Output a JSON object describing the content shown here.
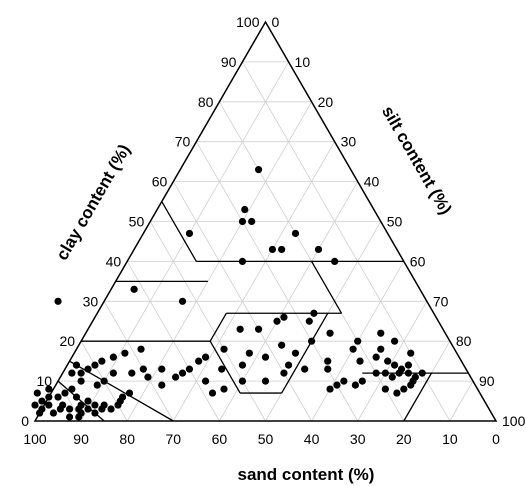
{
  "chart_data": {
    "type": "scatter",
    "subtype": "ternary",
    "grid": true,
    "grid_step": 10,
    "axes": {
      "sand": {
        "label": "sand content (%)",
        "ticks": [
          100,
          90,
          80,
          70,
          60,
          50,
          40,
          30,
          20,
          10,
          0
        ]
      },
      "clay": {
        "label": "clay content (%)",
        "ticks": [
          0,
          10,
          20,
          30,
          40,
          50,
          60,
          70,
          80,
          90,
          100
        ]
      },
      "silt": {
        "label": "silt content (%)",
        "ticks": [
          0,
          10,
          20,
          30,
          40,
          50,
          60,
          70,
          80,
          90,
          100
        ]
      }
    },
    "class_boundaries": [
      [
        [
          45,
          55
        ],
        [
          45,
          40
        ]
      ],
      [
        [
          65,
          35
        ],
        [
          45,
          35
        ]
      ],
      [
        [
          45,
          40
        ],
        [
          20,
          40
        ]
      ],
      [
        [
          20,
          40
        ],
        [
          0,
          40
        ]
      ],
      [
        [
          20,
          40
        ],
        [
          20,
          27
        ]
      ],
      [
        [
          80,
          20
        ],
        [
          52,
          20
        ]
      ],
      [
        [
          52,
          20
        ],
        [
          45,
          27
        ]
      ],
      [
        [
          45,
          27
        ],
        [
          20,
          27
        ]
      ],
      [
        [
          52,
          20
        ],
        [
          52,
          7
        ]
      ],
      [
        [
          52,
          7
        ],
        [
          43,
          7
        ]
      ],
      [
        [
          43,
          7
        ],
        [
          23,
          27
        ]
      ],
      [
        [
          23,
          12
        ],
        [
          8,
          12
        ]
      ],
      [
        [
          8,
          12
        ],
        [
          0,
          12
        ]
      ],
      [
        [
          20,
          0
        ],
        [
          8,
          12
        ]
      ],
      [
        [
          85,
          15
        ],
        [
          70,
          0
        ]
      ],
      [
        [
          90,
          10
        ],
        [
          85,
          0
        ]
      ]
    ],
    "points": [
      {
        "sand": 20,
        "clay": 63
      },
      {
        "sand": 43,
        "clay": 47
      },
      {
        "sand": 28,
        "clay": 53
      },
      {
        "sand": 28,
        "clay": 50
      },
      {
        "sand": 30,
        "clay": 50
      },
      {
        "sand": 20,
        "clay": 47
      },
      {
        "sand": 17,
        "clay": 43
      },
      {
        "sand": 27,
        "clay": 43
      },
      {
        "sand": 25,
        "clay": 43
      },
      {
        "sand": 35,
        "clay": 40
      },
      {
        "sand": 15,
        "clay": 40
      },
      {
        "sand": 53,
        "clay": 30
      },
      {
        "sand": 80,
        "clay": 30
      },
      {
        "sand": 62,
        "clay": 33
      },
      {
        "sand": 35,
        "clay": 25
      },
      {
        "sand": 28,
        "clay": 25
      },
      {
        "sand": 26,
        "clay": 27
      },
      {
        "sand": 33,
        "clay": 26
      },
      {
        "sand": 40,
        "clay": 23
      },
      {
        "sand": 44,
        "clay": 23
      },
      {
        "sand": 25,
        "clay": 22
      },
      {
        "sand": 20,
        "clay": 20
      },
      {
        "sand": 30,
        "clay": 20
      },
      {
        "sand": 37,
        "clay": 19
      },
      {
        "sand": 50,
        "clay": 18
      },
      {
        "sand": 45,
        "clay": 17
      },
      {
        "sand": 55,
        "clay": 16
      },
      {
        "sand": 57,
        "clay": 15
      },
      {
        "sand": 42,
        "clay": 16
      },
      {
        "sand": 35,
        "clay": 17
      },
      {
        "sand": 48,
        "clay": 14
      },
      {
        "sand": 53,
        "clay": 13
      },
      {
        "sand": 60,
        "clay": 13
      },
      {
        "sand": 62,
        "clay": 12
      },
      {
        "sand": 40,
        "clay": 12
      },
      {
        "sand": 35,
        "clay": 13
      },
      {
        "sand": 29,
        "clay": 15
      },
      {
        "sand": 58,
        "clay": 10
      },
      {
        "sand": 50,
        "clay": 10
      },
      {
        "sand": 45,
        "clay": 10
      },
      {
        "sand": 58,
        "clay": 7
      },
      {
        "sand": 55,
        "clay": 8
      },
      {
        "sand": 38,
        "clay": 14
      },
      {
        "sand": 30,
        "clay": 13
      },
      {
        "sand": 22,
        "clay": 15
      },
      {
        "sand": 18,
        "clay": 16
      },
      {
        "sand": 16,
        "clay": 15
      },
      {
        "sand": 15,
        "clay": 14
      },
      {
        "sand": 14,
        "clay": 13
      },
      {
        "sand": 13,
        "clay": 12
      },
      {
        "sand": 12,
        "clay": 11
      },
      {
        "sand": 15,
        "clay": 12
      },
      {
        "sand": 17,
        "clay": 11
      },
      {
        "sand": 18,
        "clay": 12
      },
      {
        "sand": 20,
        "clay": 12
      },
      {
        "sand": 24,
        "clay": 10
      },
      {
        "sand": 26,
        "clay": 9
      },
      {
        "sand": 28,
        "clay": 10
      },
      {
        "sand": 30,
        "clay": 9
      },
      {
        "sand": 32,
        "clay": 8
      },
      {
        "sand": 20,
        "clay": 8
      },
      {
        "sand": 18,
        "clay": 7
      },
      {
        "sand": 16,
        "clay": 8
      },
      {
        "sand": 14,
        "clay": 9
      },
      {
        "sand": 13,
        "clay": 10
      },
      {
        "sand": 10,
        "clay": 12
      },
      {
        "sand": 12,
        "clay": 14
      },
      {
        "sand": 16,
        "clay": 18
      },
      {
        "sand": 22,
        "clay": 18
      },
      {
        "sand": 10,
        "clay": 17
      },
      {
        "sand": 12,
        "clay": 20
      },
      {
        "sand": 14,
        "clay": 22
      },
      {
        "sand": 68,
        "clay": 18
      },
      {
        "sand": 72,
        "clay": 17
      },
      {
        "sand": 75,
        "clay": 16
      },
      {
        "sand": 78,
        "clay": 15
      },
      {
        "sand": 80,
        "clay": 14
      },
      {
        "sand": 82,
        "clay": 13
      },
      {
        "sand": 84,
        "clay": 14
      },
      {
        "sand": 84,
        "clay": 12
      },
      {
        "sand": 77,
        "clay": 12
      },
      {
        "sand": 73,
        "clay": 12
      },
      {
        "sand": 70,
        "clay": 11
      },
      {
        "sand": 70,
        "clay": 13
      },
      {
        "sand": 66,
        "clay": 13
      },
      {
        "sand": 64,
        "clay": 11
      },
      {
        "sand": 68,
        "clay": 9
      },
      {
        "sand": 86,
        "clay": 12
      },
      {
        "sand": 85,
        "clay": 10
      },
      {
        "sand": 80,
        "clay": 10
      },
      {
        "sand": 82,
        "clay": 9
      },
      {
        "sand": 86,
        "clay": 5
      },
      {
        "sand": 88,
        "clay": 6
      },
      {
        "sand": 90,
        "clay": 7
      },
      {
        "sand": 92,
        "clay": 6
      },
      {
        "sand": 93,
        "clay": 8
      },
      {
        "sand": 95,
        "clay": 4
      },
      {
        "sand": 96,
        "clay": 5
      },
      {
        "sand": 97,
        "clay": 3
      },
      {
        "sand": 95,
        "clay": 2
      },
      {
        "sand": 93,
        "clay": 3
      },
      {
        "sand": 91,
        "clay": 3
      },
      {
        "sand": 89,
        "clay": 3
      },
      {
        "sand": 88,
        "clay": 4
      },
      {
        "sand": 87,
        "clay": 3
      },
      {
        "sand": 86,
        "clay": 2
      },
      {
        "sand": 85,
        "clay": 4
      },
      {
        "sand": 84,
        "clay": 3
      },
      {
        "sand": 83,
        "clay": 4
      },
      {
        "sand": 82,
        "clay": 3
      },
      {
        "sand": 80,
        "clay": 4
      },
      {
        "sand": 79,
        "clay": 5
      },
      {
        "sand": 78,
        "clay": 6
      },
      {
        "sand": 90,
        "clay": 1
      },
      {
        "sand": 92,
        "clay": 1
      },
      {
        "sand": 98,
        "clay": 2
      },
      {
        "sand": 98,
        "clay": 4
      },
      {
        "sand": 96,
        "clay": 7
      },
      {
        "sand": 94,
        "clay": 6
      },
      {
        "sand": 92,
        "clay": 4
      },
      {
        "sand": 89,
        "clay": 2
      },
      {
        "sand": 76,
        "clay": 7
      },
      {
        "sand": 88,
        "clay": 8
      }
    ]
  }
}
